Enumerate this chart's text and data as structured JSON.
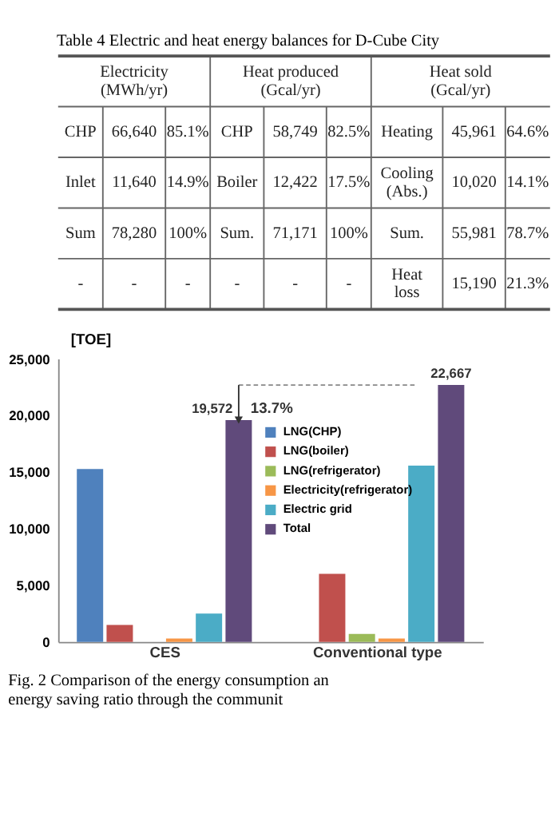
{
  "chart_data": [
    {
      "type": "other",
      "title": "Table 4  Electric and heat energy balances for D-Cube City",
      "categories": [
        "Electricity\n(MWh/yr)",
        "Heat produced\n(Gcal/yr)",
        "Heat sold\n(Gcal/yr)"
      ],
      "cell_labels": [
        [
          "CHP",
          "66,640",
          "85.1%",
          "CHP",
          "58,749",
          "82.5%",
          "Heating",
          "45,961",
          "64.6%"
        ],
        [
          "Inlet",
          "11,640",
          "14.9%",
          "Boiler",
          "12,422",
          "17.5%",
          "Cooling\n(Abs.)",
          "10,020",
          "14.1%"
        ],
        [
          "Sum",
          "78,280",
          "100%",
          "Sum.",
          "71,171",
          "100%",
          "Sum.",
          "55,981",
          "78.7%"
        ],
        [
          "-",
          "-",
          "-",
          "-",
          "-",
          "-",
          "Heat\nloss",
          "15,190",
          "21.3%"
        ]
      ]
    },
    {
      "type": "bar",
      "categories": [
        "CES",
        "Conventional type"
      ],
      "ylabel": "[TOE]",
      "ylim": [
        0,
        25000
      ],
      "yticks": [
        0,
        {
          "value": 5000,
          "label": "5,000"
        },
        {
          "value": 10000,
          "label": "10,000"
        },
        {
          "value": 15000,
          "label": "15,000"
        },
        {
          "value": 20000,
          "label": "20,000"
        },
        {
          "value": 25000,
          "label": "25,000"
        }
      ],
      "grid": false,
      "legend": "top",
      "series": [
        {
          "name": "LNG(CHP)",
          "color": "#4f81bd",
          "values": [
            15250,
            0
          ]
        },
        {
          "name": "LNG(boiler)",
          "color": "#c0504d",
          "values": [
            1500,
            6000
          ]
        },
        {
          "name": "LNG(refrigerator)",
          "color": "#9bbb59",
          "values": [
            0,
            700
          ]
        },
        {
          "name": "Electricity(refrigerator)",
          "color": "#f79646",
          "values": [
            300,
            300
          ]
        },
        {
          "name": "Electric grid",
          "color": "#4bacc6",
          "values": [
            2500,
            15550
          ]
        },
        {
          "name": "Total",
          "color": "#604a7b",
          "values": [
            19572,
            22667
          ],
          "value_labels": [
            "19,572",
            "22,667"
          ]
        }
      ],
      "annotations": [
        "13.7%",
        "Fig. 2  Comparison of the energy consumption an energy saving ratio through the communit"
      ]
    }
  ]
}
